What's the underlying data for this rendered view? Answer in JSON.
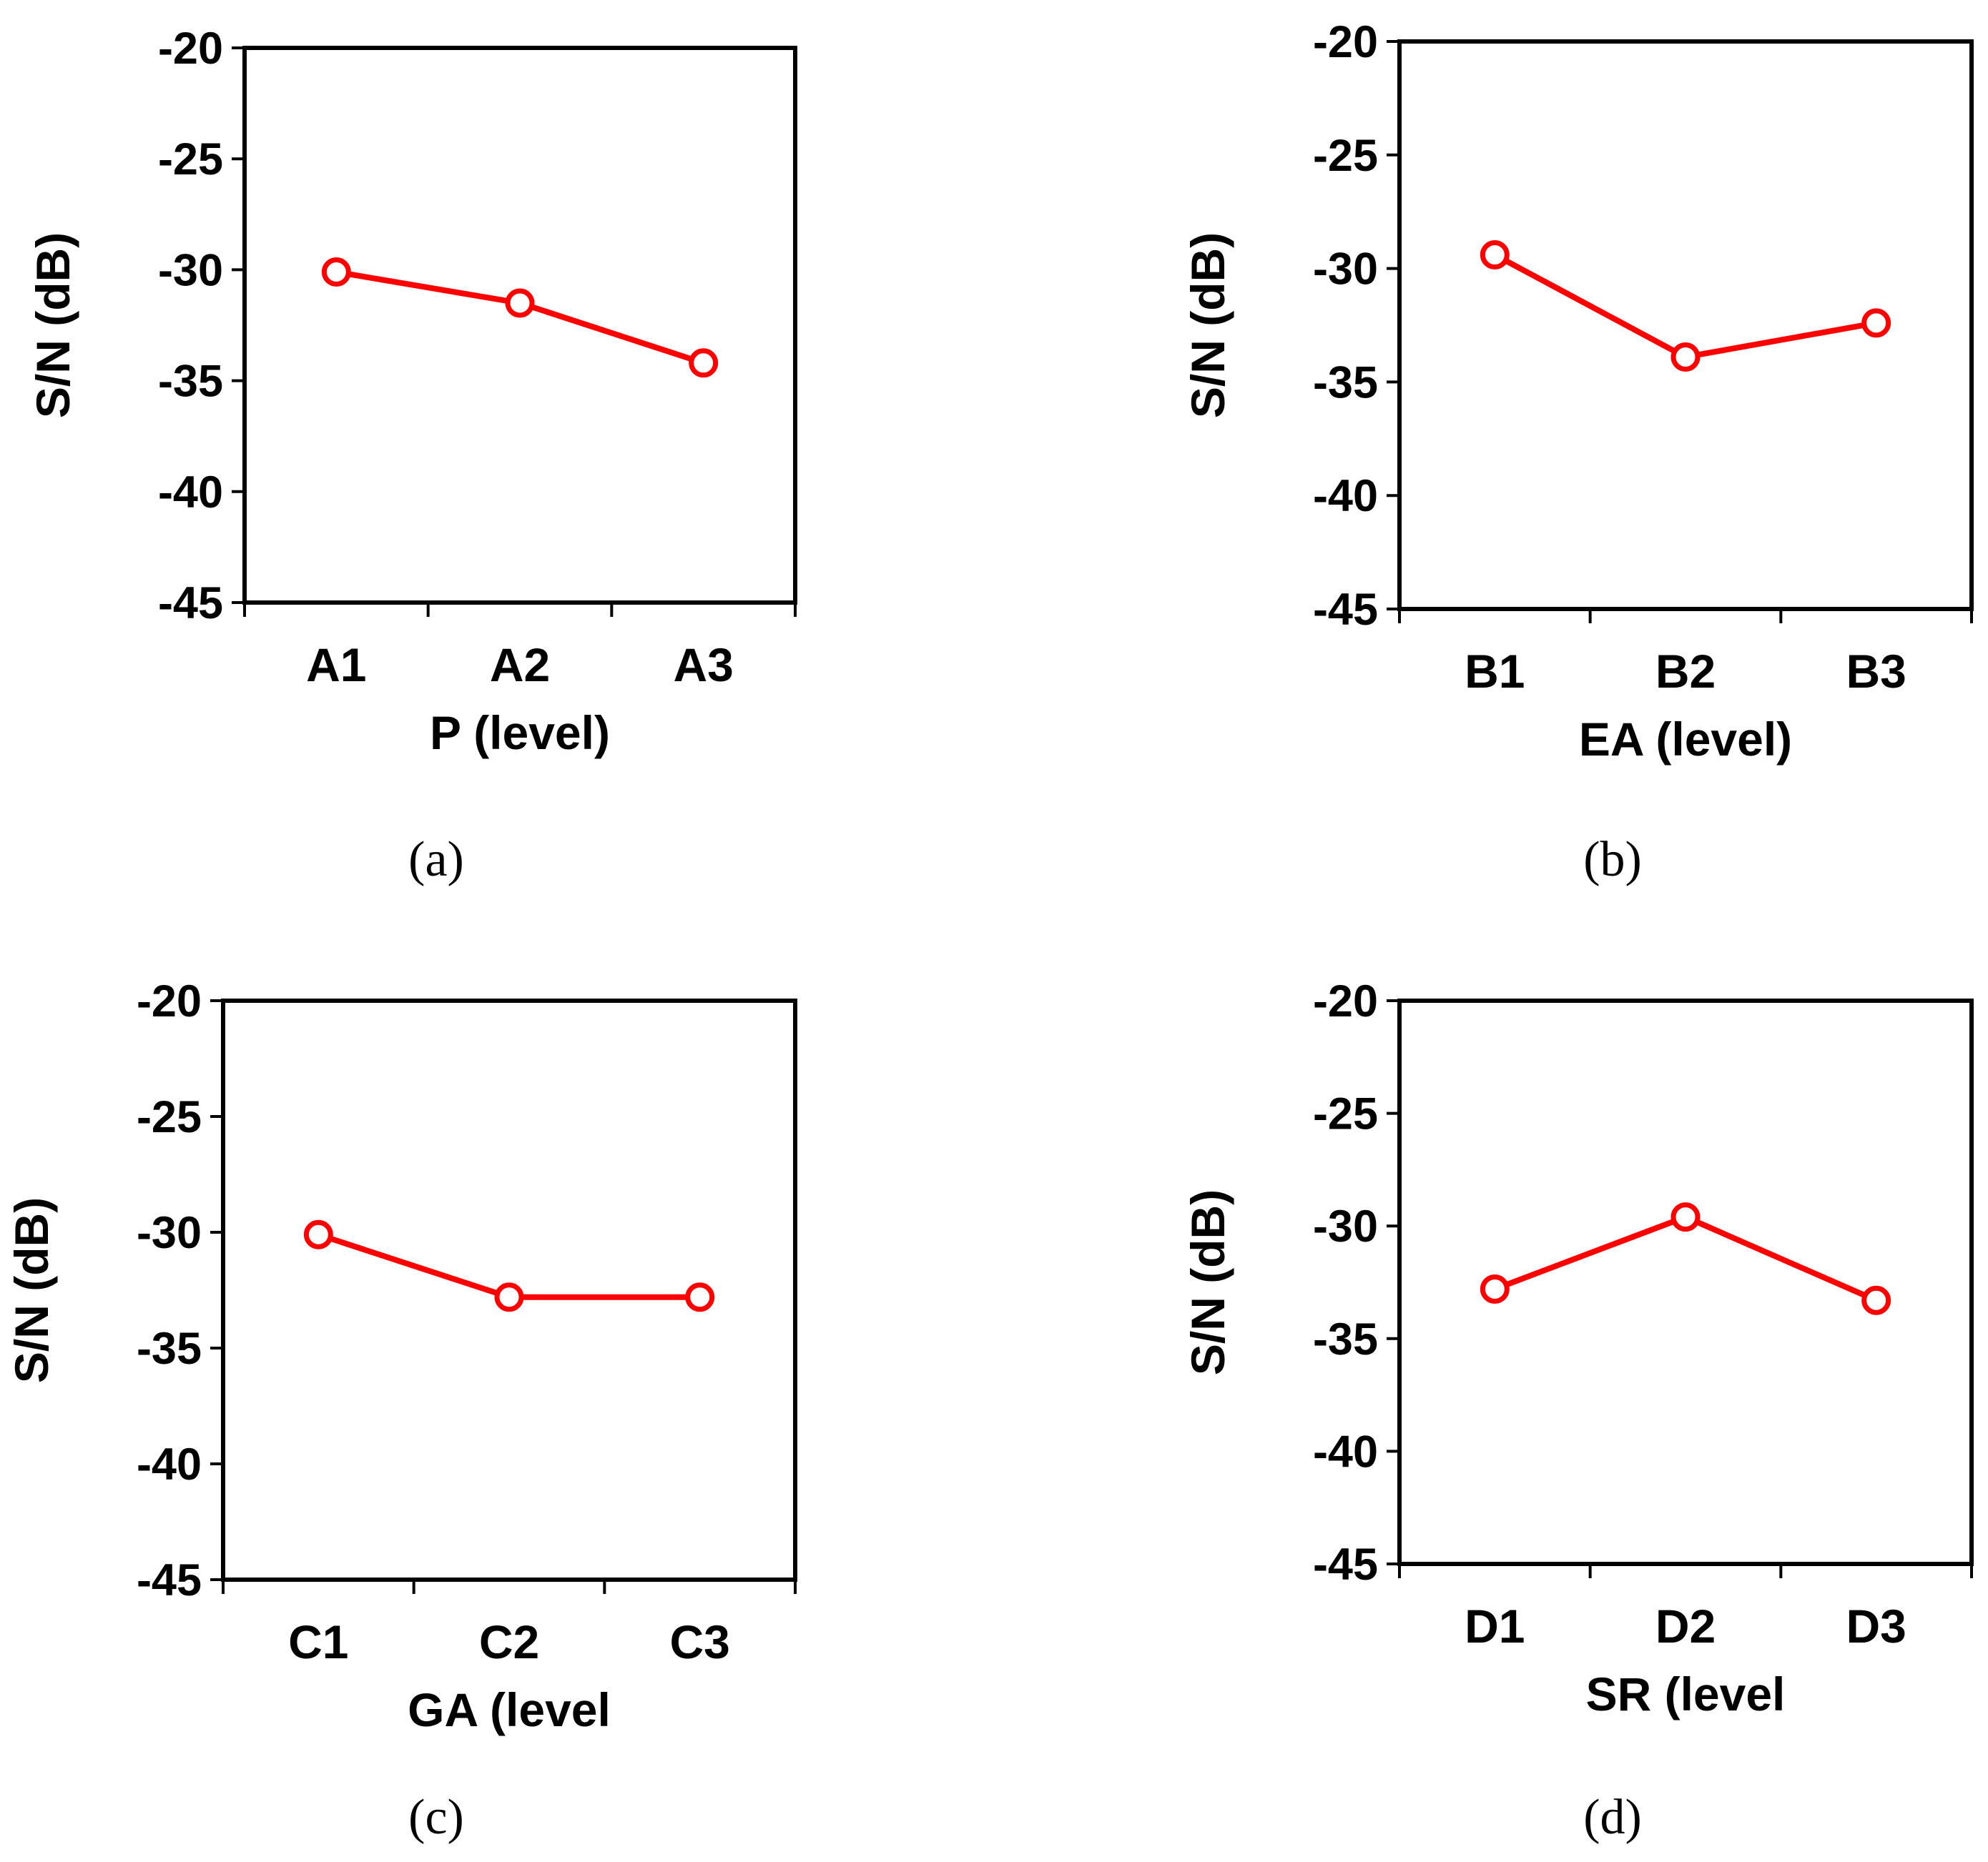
{
  "colors": {
    "series": "#ff0000",
    "axis": "#000000",
    "marker_fill": "#ffffff"
  },
  "chart_data": [
    {
      "type": "line",
      "caption": "(a)",
      "xlabel": "P (level)",
      "ylabel": "S/N (dB)",
      "categories": [
        "A1",
        "A2",
        "A3"
      ],
      "values": [
        -30.1,
        -31.5,
        -34.2
      ],
      "ylim": [
        -45,
        -20
      ],
      "yticks": [
        "-20",
        "-25",
        "-30",
        "-35",
        "-40",
        "-45"
      ],
      "marker": "open-circle",
      "grid": false
    },
    {
      "type": "line",
      "caption": "(b)",
      "xlabel": "EA (level)",
      "ylabel": "S/N (dB)",
      "categories": [
        "B1",
        "B2",
        "B3"
      ],
      "values": [
        -29.4,
        -33.9,
        -32.4
      ],
      "ylim": [
        -45,
        -20
      ],
      "yticks": [
        "-20",
        "-25",
        "-30",
        "-35",
        "-40",
        "-45"
      ],
      "marker": "open-circle",
      "grid": false
    },
    {
      "type": "line",
      "caption": "(c)",
      "xlabel": "GA (level",
      "ylabel": "S/N (dB)",
      "categories": [
        "C1",
        "C2",
        "C3"
      ],
      "values": [
        -30.1,
        -32.8,
        -32.8
      ],
      "ylim": [
        -45,
        -20
      ],
      "yticks": [
        "-20",
        "-25",
        "-30",
        "-35",
        "-40",
        "-45"
      ],
      "marker": "open-circle",
      "grid": false
    },
    {
      "type": "line",
      "caption": "(d)",
      "xlabel": "SR (level",
      "ylabel": "S/N (dB)",
      "categories": [
        "D1",
        "D2",
        "D3"
      ],
      "values": [
        -32.8,
        -29.6,
        -33.3
      ],
      "ylim": [
        -45,
        -20
      ],
      "yticks": [
        "-20",
        "-25",
        "-30",
        "-35",
        "-40",
        "-45"
      ],
      "marker": "open-circle",
      "grid": false
    }
  ]
}
